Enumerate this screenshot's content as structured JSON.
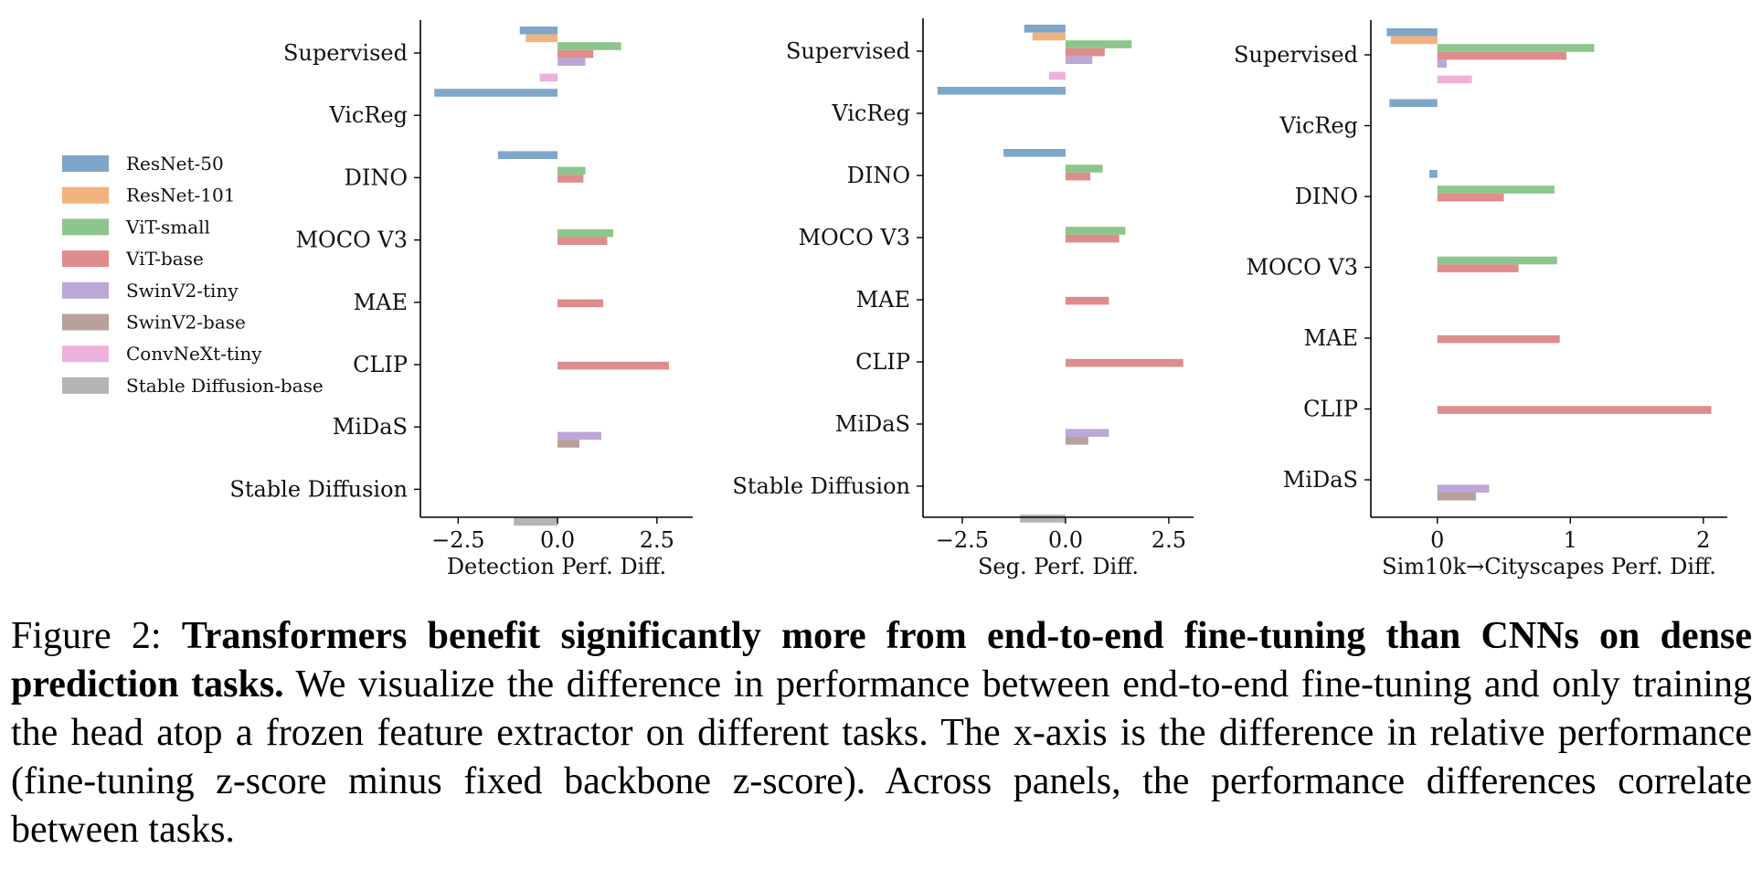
{
  "legend": [
    {
      "label": "ResNet-50",
      "color": "#7ea6c9"
    },
    {
      "label": "ResNet-101",
      "color": "#f2b27e"
    },
    {
      "label": "ViT-small",
      "color": "#8cc68c"
    },
    {
      "label": "ViT-base",
      "color": "#de8c8c"
    },
    {
      "label": "SwinV2-tiny",
      "color": "#bca7d6"
    },
    {
      "label": "SwinV2-base",
      "color": "#b8a19a"
    },
    {
      "label": "ConvNeXt-tiny",
      "color": "#eeb1dc"
    },
    {
      "label": "Stable Diffusion-base",
      "color": "#b4b4b4"
    }
  ],
  "chart_data": [
    {
      "type": "bar",
      "orientation": "horizontal",
      "xlabel": "Detection Perf. Diff.",
      "xlim": [
        -3.45,
        3.4
      ],
      "xticks": [
        -2.5,
        0.0,
        2.5
      ],
      "xtick_labels": [
        "−2.5",
        "0.0",
        "2.5"
      ],
      "categories": [
        "Supervised",
        "VicReg",
        "DINO",
        "MOCO V3",
        "MAE",
        "CLIP",
        "MiDaS",
        "Stable Diffusion"
      ],
      "series": [
        {
          "name": "ResNet-50",
          "values": [
            -0.95,
            -3.1,
            -1.5,
            null,
            null,
            null,
            null,
            null
          ]
        },
        {
          "name": "ResNet-101",
          "values": [
            -0.8,
            null,
            null,
            null,
            null,
            null,
            null,
            null
          ]
        },
        {
          "name": "ViT-small",
          "values": [
            1.6,
            null,
            0.7,
            1.4,
            null,
            null,
            null,
            null
          ]
        },
        {
          "name": "ViT-base",
          "values": [
            0.9,
            null,
            0.65,
            1.25,
            1.15,
            2.8,
            null,
            null
          ]
        },
        {
          "name": "SwinV2-tiny",
          "values": [
            0.7,
            null,
            null,
            null,
            null,
            null,
            1.1,
            null
          ]
        },
        {
          "name": "SwinV2-base",
          "values": [
            null,
            null,
            null,
            null,
            null,
            null,
            0.55,
            null
          ]
        },
        {
          "name": "ConvNeXt-tiny",
          "values": [
            -0.45,
            null,
            null,
            null,
            null,
            null,
            null,
            null
          ]
        },
        {
          "name": "Stable Diffusion-base",
          "values": [
            null,
            null,
            null,
            null,
            null,
            null,
            null,
            -1.1
          ]
        }
      ]
    },
    {
      "type": "bar",
      "orientation": "horizontal",
      "xlabel": "Seg. Perf. Diff.",
      "xlim": [
        -3.45,
        3.1
      ],
      "xticks": [
        -2.5,
        0.0,
        2.5
      ],
      "xtick_labels": [
        "−2.5",
        "0.0",
        "2.5"
      ],
      "categories": [
        "Supervised",
        "VicReg",
        "DINO",
        "MOCO V3",
        "MAE",
        "CLIP",
        "MiDaS",
        "Stable Diffusion"
      ],
      "series": [
        {
          "name": "ResNet-50",
          "values": [
            -1.0,
            -3.1,
            -1.5,
            null,
            null,
            null,
            null,
            null
          ]
        },
        {
          "name": "ResNet-101",
          "values": [
            -0.8,
            null,
            null,
            null,
            null,
            null,
            null,
            null
          ]
        },
        {
          "name": "ViT-small",
          "values": [
            1.6,
            null,
            0.9,
            1.45,
            null,
            null,
            null,
            null
          ]
        },
        {
          "name": "ViT-base",
          "values": [
            0.95,
            null,
            0.6,
            1.3,
            1.05,
            2.85,
            null,
            null
          ]
        },
        {
          "name": "SwinV2-tiny",
          "values": [
            0.65,
            null,
            null,
            null,
            null,
            null,
            1.05,
            null
          ]
        },
        {
          "name": "SwinV2-base",
          "values": [
            null,
            null,
            null,
            null,
            null,
            null,
            0.55,
            null
          ]
        },
        {
          "name": "ConvNeXt-tiny",
          "values": [
            -0.4,
            null,
            null,
            null,
            null,
            null,
            null,
            null
          ]
        },
        {
          "name": "Stable Diffusion-base",
          "values": [
            null,
            null,
            null,
            null,
            null,
            null,
            null,
            -1.1
          ]
        }
      ]
    },
    {
      "type": "bar",
      "orientation": "horizontal",
      "xlabel": "Sim10k→Cityscapes Perf. Diff.",
      "xlim": [
        -0.5,
        2.18
      ],
      "xticks": [
        0,
        1,
        2
      ],
      "xtick_labels": [
        "0",
        "1",
        "2"
      ],
      "categories": [
        "Supervised",
        "VicReg",
        "DINO",
        "MOCO V3",
        "MAE",
        "CLIP",
        "MiDaS"
      ],
      "series": [
        {
          "name": "ResNet-50",
          "values": [
            -0.38,
            -0.36,
            -0.06,
            null,
            null,
            null,
            null
          ]
        },
        {
          "name": "ResNet-101",
          "values": [
            -0.35,
            null,
            null,
            null,
            null,
            null,
            null
          ]
        },
        {
          "name": "ViT-small",
          "values": [
            1.18,
            null,
            0.88,
            0.9,
            null,
            null,
            null
          ]
        },
        {
          "name": "ViT-base",
          "values": [
            0.97,
            null,
            0.5,
            0.61,
            0.92,
            2.06,
            null
          ]
        },
        {
          "name": "SwinV2-tiny",
          "values": [
            0.07,
            null,
            null,
            null,
            null,
            null,
            0.39
          ]
        },
        {
          "name": "SwinV2-base",
          "values": [
            null,
            null,
            null,
            null,
            null,
            null,
            0.29
          ]
        },
        {
          "name": "ConvNeXt-tiny",
          "values": [
            0.26,
            null,
            null,
            null,
            null,
            null,
            null
          ]
        },
        {
          "name": "Stable Diffusion-base",
          "values": [
            null,
            null,
            null,
            null,
            null,
            null,
            null
          ]
        }
      ]
    }
  ],
  "caption": {
    "prefix": "Figure 2: ",
    "bold": "Transformers benefit significantly more from end-to-end fine-tuning than CNNs on dense prediction tasks.",
    "body": " We visualize the difference in performance between end-to-end fine-tuning and only training the head atop a frozen feature extractor on different tasks.  The x-axis is the difference in relative performance (fine-tuning z-score minus fixed backbone z-score). Across panels, the performance differences correlate between tasks."
  }
}
